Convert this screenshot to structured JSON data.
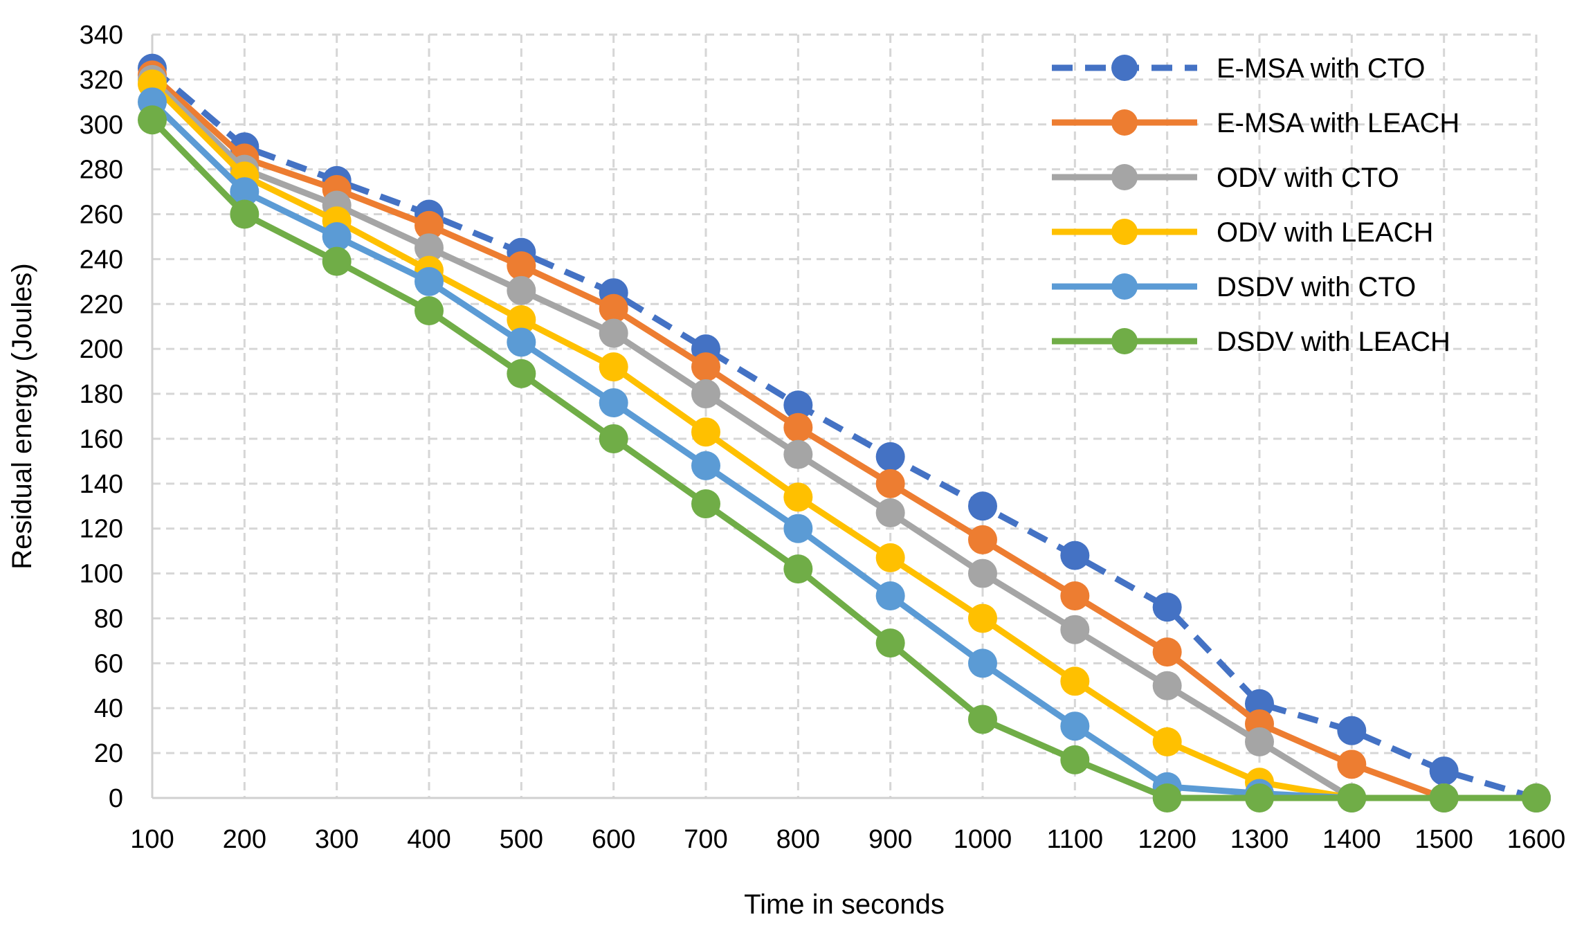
{
  "chart_data": {
    "type": "line",
    "title": "",
    "xlabel": "Time in seconds",
    "ylabel": "Residual energy (Joules)",
    "x": [
      100,
      200,
      300,
      400,
      500,
      600,
      700,
      800,
      900,
      1000,
      1100,
      1200,
      1300,
      1400,
      1500,
      1600
    ],
    "xlim": [
      100,
      1600
    ],
    "ylim": [
      0,
      340
    ],
    "yticks": [
      0,
      20,
      40,
      60,
      80,
      100,
      120,
      140,
      160,
      180,
      200,
      220,
      240,
      260,
      280,
      300,
      320,
      340
    ],
    "grid": true,
    "legend_position": "top-right",
    "series": [
      {
        "name": "E-MSA with CTO",
        "color": "#4472C4",
        "dashed": true,
        "values": [
          325,
          290,
          275,
          260,
          243,
          225,
          200,
          175,
          152,
          130,
          108,
          85,
          42,
          30,
          12,
          0
        ]
      },
      {
        "name": "E-MSA with LEACH",
        "color": "#ED7D31",
        "dashed": false,
        "values": [
          322,
          285,
          271,
          255,
          237,
          218,
          192,
          165,
          140,
          115,
          90,
          65,
          33,
          15,
          0,
          0
        ]
      },
      {
        "name": "ODV with CTO",
        "color": "#A5A5A5",
        "dashed": false,
        "values": [
          320,
          280,
          264,
          245,
          226,
          207,
          180,
          153,
          127,
          100,
          75,
          50,
          25,
          0,
          0,
          0
        ]
      },
      {
        "name": "ODV with LEACH",
        "color": "#FFC000",
        "dashed": false,
        "values": [
          318,
          277,
          257,
          235,
          213,
          192,
          163,
          134,
          107,
          80,
          52,
          25,
          7,
          0,
          0,
          0
        ]
      },
      {
        "name": "DSDV with CTO",
        "color": "#5B9BD5",
        "dashed": false,
        "values": [
          310,
          270,
          250,
          230,
          203,
          176,
          148,
          120,
          90,
          60,
          32,
          5,
          2,
          0,
          0,
          0
        ]
      },
      {
        "name": "DSDV with LEACH",
        "color": "#70AD47",
        "dashed": false,
        "values": [
          302,
          260,
          239,
          217,
          189,
          160,
          131,
          102,
          69,
          35,
          17,
          0,
          0,
          0,
          0,
          0
        ]
      }
    ]
  }
}
